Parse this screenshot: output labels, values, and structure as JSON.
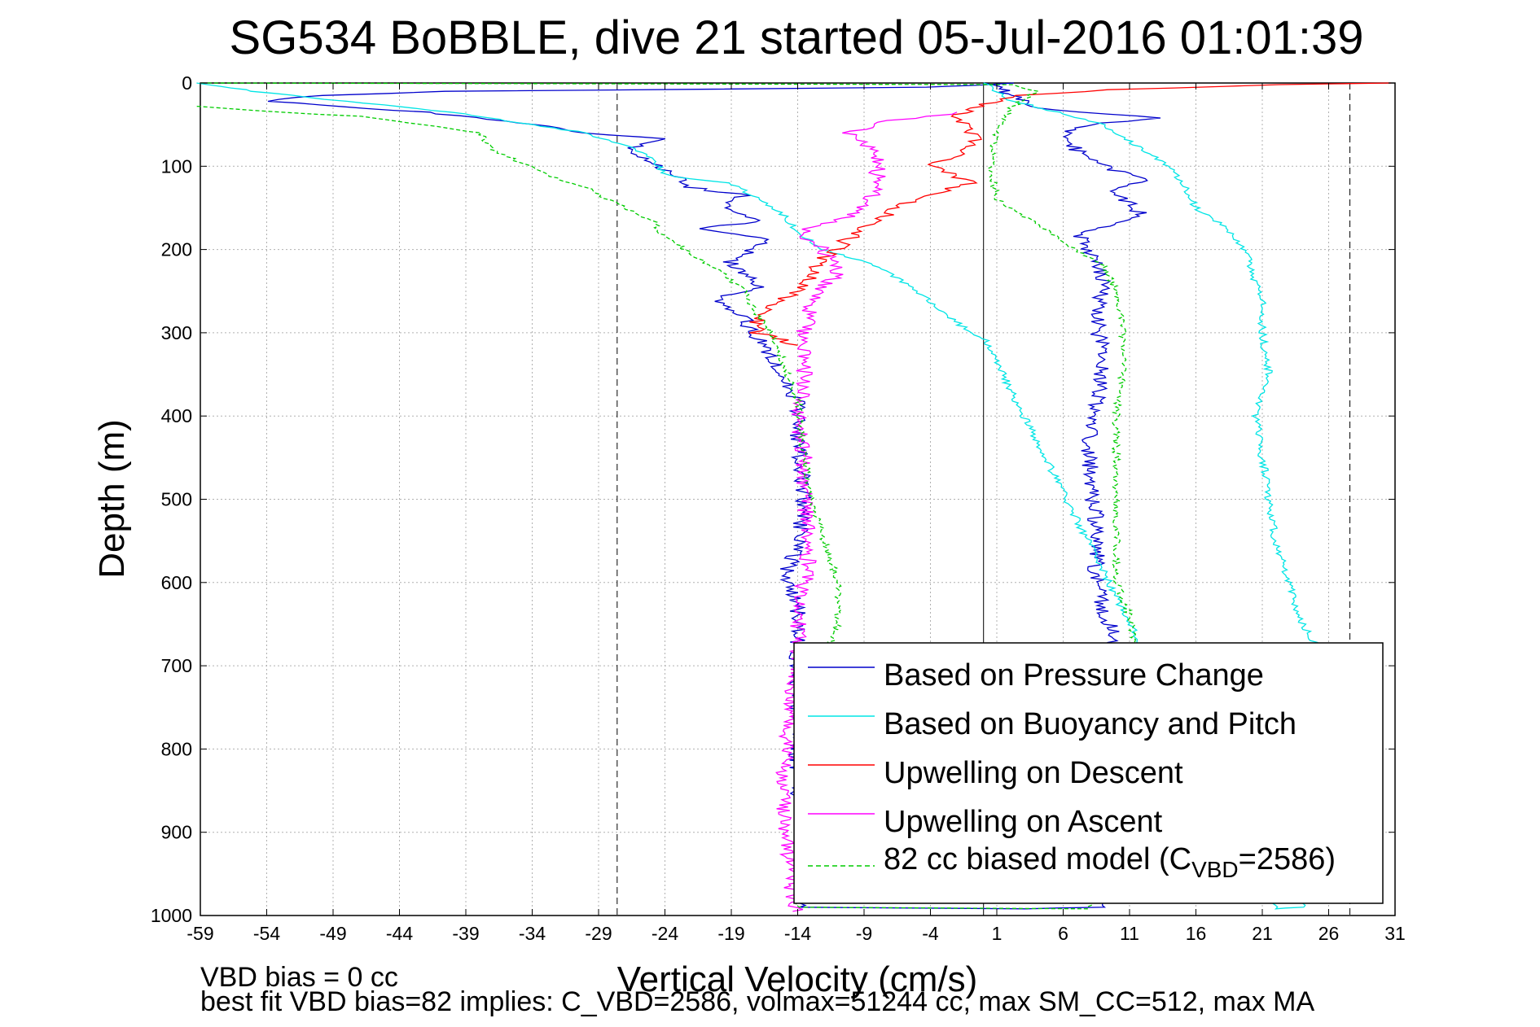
{
  "chart_data": {
    "type": "line",
    "title": "SG534 BoBBLE, dive 21 started 05-Jul-2016 01:01:39",
    "xlabel": "Vertical Velocity (cm/s)",
    "ylabel": "Depth (m)",
    "xlim": [
      -59,
      31
    ],
    "ylim": [
      1000,
      0
    ],
    "x_ticks": [
      -59,
      -54,
      -49,
      -44,
      -39,
      -34,
      -29,
      -24,
      -19,
      -14,
      -9,
      -4,
      1,
      6,
      11,
      16,
      21,
      26,
      31
    ],
    "y_ticks": [
      0,
      100,
      200,
      300,
      400,
      500,
      600,
      700,
      800,
      900,
      1000
    ],
    "grid": true,
    "reference_lines": [
      {
        "x": -27.6,
        "style": "dashed"
      },
      {
        "x": 0.0,
        "style": "solid"
      },
      {
        "x": 27.6,
        "style": "dashed"
      }
    ],
    "legend_position": "lower-right",
    "legend_text": {
      "s0": "Based on Pressure Change",
      "s1": "Based on Buoyancy and Pitch",
      "s2": "Upwelling on Descent",
      "s3": "Upwelling on Ascent",
      "s4_prefix": "82 cc biased model (C",
      "s4_sub": "VBD",
      "s4_suffix": "=2586)"
    },
    "series": [
      {
        "name": "Based on Pressure Change",
        "color": "#0000cc",
        "style": "solid",
        "points": [
          [
            2.7,
            0
          ],
          [
            -4,
            5
          ],
          [
            -40,
            10
          ],
          [
            -50,
            15
          ],
          [
            -54,
            22
          ],
          [
            -42,
            35
          ],
          [
            -34,
            50
          ],
          [
            -30,
            60
          ],
          [
            -24,
            67
          ],
          [
            -27,
            80
          ],
          [
            -25,
            95
          ],
          [
            -23,
            110
          ],
          [
            -22,
            125
          ],
          [
            -18,
            135
          ],
          [
            -20,
            150
          ],
          [
            -17,
            165
          ],
          [
            -21,
            175
          ],
          [
            -16,
            190
          ],
          [
            -19,
            215
          ],
          [
            -17,
            245
          ],
          [
            -20,
            260
          ],
          [
            -18,
            285
          ],
          [
            -17,
            305
          ],
          [
            -16,
            330
          ],
          [
            -15,
            360
          ],
          [
            -14,
            385
          ],
          [
            -14,
            430
          ],
          [
            -13.5,
            500
          ],
          [
            -14,
            560
          ],
          [
            -15,
            590
          ],
          [
            -14,
            630
          ],
          [
            -14,
            700
          ],
          [
            -14,
            800
          ],
          [
            -14,
            860
          ],
          [
            -13.5,
            900
          ],
          [
            -13.5,
            990
          ],
          [
            3,
            992
          ],
          [
            8.5,
            990
          ],
          [
            8.5,
            900
          ],
          [
            9,
            800
          ],
          [
            9,
            700
          ],
          [
            10,
            670
          ],
          [
            9,
            630
          ],
          [
            8.5,
            590
          ],
          [
            8.5,
            530
          ],
          [
            8,
            470
          ],
          [
            8,
            420
          ],
          [
            8.5,
            380
          ],
          [
            9,
            330
          ],
          [
            8.5,
            280
          ],
          [
            9,
            240
          ],
          [
            8.5,
            210
          ],
          [
            7,
            180
          ],
          [
            10,
            170
          ],
          [
            12,
            160
          ],
          [
            11,
            145
          ],
          [
            10,
            130
          ],
          [
            12,
            115
          ],
          [
            9,
            100
          ],
          [
            7,
            80
          ],
          [
            6,
            60
          ],
          [
            8,
            50
          ],
          [
            13,
            42
          ],
          [
            4,
            30
          ],
          [
            2,
            15
          ],
          [
            1,
            5
          ],
          [
            0,
            0
          ]
        ]
      },
      {
        "name": "Based on Buoyancy and Pitch",
        "color": "#00e5e5",
        "style": "solid",
        "points": [
          [
            -59,
            0
          ],
          [
            -55,
            10
          ],
          [
            -48,
            22
          ],
          [
            -40,
            35
          ],
          [
            -34,
            50
          ],
          [
            -30,
            60
          ],
          [
            -27,
            75
          ],
          [
            -25,
            90
          ],
          [
            -24,
            110
          ],
          [
            -22,
            115
          ],
          [
            -19,
            120
          ],
          [
            -17,
            140
          ],
          [
            -15,
            160
          ],
          [
            -14,
            180
          ],
          [
            -12,
            200
          ],
          [
            -9,
            215
          ],
          [
            -7,
            230
          ],
          [
            -5,
            250
          ],
          [
            -3,
            275
          ],
          [
            -1,
            300
          ],
          [
            0,
            305
          ],
          [
            22,
            992
          ],
          [
            24,
            990
          ],
          [
            24,
            900
          ],
          [
            25,
            800
          ],
          [
            26,
            700
          ],
          [
            24,
            650
          ],
          [
            23,
            600
          ],
          [
            22,
            550
          ],
          [
            21.5,
            500
          ],
          [
            21,
            450
          ],
          [
            20.5,
            400
          ],
          [
            21.5,
            350
          ],
          [
            21,
            300
          ],
          [
            21,
            260
          ],
          [
            20,
            220
          ],
          [
            20,
            210
          ],
          [
            19,
            190
          ],
          [
            18,
            170
          ],
          [
            16,
            150
          ],
          [
            15,
            120
          ],
          [
            14,
            100
          ],
          [
            11,
            70
          ],
          [
            9,
            50
          ],
          [
            2,
            20
          ],
          [
            0,
            0
          ]
        ]
      },
      {
        "name": "Upwelling on Descent",
        "color": "#ff0000",
        "style": "solid",
        "points": [
          [
            31,
            0
          ],
          [
            22,
            2
          ],
          [
            10,
            8
          ],
          [
            2,
            15
          ],
          [
            -0.5,
            30
          ],
          [
            -2,
            40
          ],
          [
            -1,
            55
          ],
          [
            -0.5,
            70
          ],
          [
            -2,
            85
          ],
          [
            -4,
            100
          ],
          [
            -1,
            120
          ],
          [
            -6,
            145
          ],
          [
            -8,
            165
          ],
          [
            -10,
            185
          ],
          [
            -12,
            210
          ],
          [
            -13,
            230
          ],
          [
            -14,
            250
          ],
          [
            -16,
            270
          ],
          [
            -17,
            285
          ],
          [
            -17,
            300
          ],
          [
            -14,
            315
          ]
        ]
      },
      {
        "name": "Upwelling on Ascent",
        "color": "#ff00ff",
        "style": "solid",
        "points": [
          [
            -14,
            995
          ],
          [
            -14.5,
            960
          ],
          [
            -15,
            900
          ],
          [
            -15,
            850
          ],
          [
            -15,
            800
          ],
          [
            -14.5,
            750
          ],
          [
            -14,
            700
          ],
          [
            -14,
            650
          ],
          [
            -13.5,
            600
          ],
          [
            -13,
            550
          ],
          [
            -13.5,
            500
          ],
          [
            -13.5,
            450
          ],
          [
            -14,
            400
          ],
          [
            -13.5,
            350
          ],
          [
            -13.5,
            300
          ],
          [
            -13,
            260
          ],
          [
            -11,
            230
          ],
          [
            -12,
            200
          ],
          [
            -14,
            180
          ],
          [
            -10,
            160
          ],
          [
            -8,
            130
          ],
          [
            -8,
            110
          ],
          [
            -8,
            90
          ],
          [
            -10,
            60
          ],
          [
            -7,
            45
          ],
          [
            -4,
            40
          ],
          [
            -2,
            35
          ]
        ]
      },
      {
        "name": "82 cc biased model",
        "color": "#00cc00",
        "style": "dashed",
        "points": [
          [
            -59,
            28
          ],
          [
            -53,
            35
          ],
          [
            -47,
            40
          ],
          [
            -42,
            50
          ],
          [
            -38,
            60
          ],
          [
            -37,
            80
          ],
          [
            -35,
            95
          ],
          [
            -33,
            110
          ],
          [
            -30,
            125
          ],
          [
            -27,
            150
          ],
          [
            -25,
            165
          ],
          [
            -24,
            185
          ],
          [
            -22,
            205
          ],
          [
            -20,
            225
          ],
          [
            -18,
            250
          ],
          [
            -17,
            280
          ],
          [
            -16,
            300
          ],
          [
            -15,
            340
          ],
          [
            -14,
            380
          ],
          [
            -13.5,
            450
          ],
          [
            -13,
            500
          ],
          [
            -12,
            550
          ],
          [
            -11,
            600
          ],
          [
            -11,
            650
          ],
          [
            -12,
            700
          ],
          [
            -13,
            800
          ],
          [
            -13.5,
            900
          ],
          [
            -14,
            990
          ],
          [
            8,
            992
          ],
          [
            9,
            950
          ],
          [
            10,
            850
          ],
          [
            11,
            750
          ],
          [
            11.5,
            690
          ],
          [
            11,
            640
          ],
          [
            10,
            600
          ],
          [
            10,
            550
          ],
          [
            10,
            500
          ],
          [
            10,
            450
          ],
          [
            10,
            400
          ],
          [
            10.5,
            350
          ],
          [
            10.5,
            300
          ],
          [
            10,
            250
          ],
          [
            9,
            220
          ],
          [
            6,
            190
          ],
          [
            3,
            160
          ],
          [
            1,
            140
          ],
          [
            0.5,
            100
          ],
          [
            1,
            60
          ],
          [
            2,
            30
          ],
          [
            4,
            10
          ],
          [
            2,
            2
          ],
          [
            -59,
            0
          ]
        ]
      }
    ]
  },
  "footer": {
    "line1": "VBD bias = 0 cc",
    "line2": "best fit VBD bias=82 implies: C_VBD=2586, volmax=51244 cc, max SM_CC=512, max MA"
  }
}
